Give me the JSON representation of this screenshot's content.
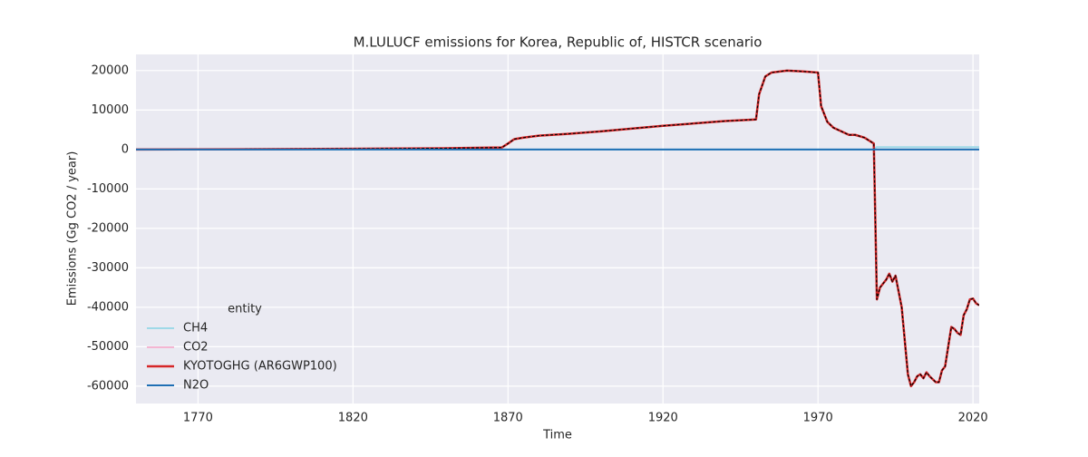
{
  "chart_data": {
    "type": "line",
    "title": "M.LULUCF emissions for Korea, Republic of, HISTCR scenario",
    "x_label": "Time",
    "y_label": "Emissions (Gg CO2 / year)",
    "x": [
      1750,
      1800,
      1850,
      1868,
      1870,
      1872,
      1875,
      1880,
      1890,
      1900,
      1920,
      1940,
      1950,
      1951,
      1953,
      1955,
      1960,
      1965,
      1970,
      1971,
      1973,
      1975,
      1980,
      1982,
      1985,
      1988,
      1989,
      1990,
      1992,
      1993,
      1994,
      1995,
      1997,
      1999,
      2000,
      2001,
      2002,
      2003,
      2004,
      2005,
      2006,
      2008,
      2009,
      2010,
      2011,
      2013,
      2014,
      2015,
      2016,
      2017,
      2018,
      2019,
      2020,
      2021,
      2022
    ],
    "series": [
      {
        "name": "CH4",
        "color": "#9fd9e8",
        "width": 2,
        "values": [
          0,
          0,
          0,
          0,
          0,
          0,
          0,
          0,
          0,
          0,
          0,
          0,
          0,
          0,
          0,
          0,
          0,
          0,
          0,
          0,
          0,
          0,
          0,
          0,
          0,
          0,
          600,
          600,
          600,
          600,
          600,
          600,
          600,
          600,
          600,
          600,
          600,
          600,
          600,
          600,
          600,
          600,
          600,
          600,
          600,
          600,
          600,
          600,
          600,
          600,
          600,
          600,
          600,
          600,
          600
        ]
      },
      {
        "name": "CO2",
        "color": "#f4b6d2",
        "width": 2,
        "values": [
          0,
          100,
          300,
          500,
          1500,
          2600,
          3000,
          3500,
          4000,
          4600,
          6000,
          7200,
          7600,
          14000,
          18500,
          19500,
          20000,
          19800,
          19500,
          11000,
          7000,
          5500,
          3700,
          3700,
          3000,
          1500,
          -38000,
          -35000,
          -33000,
          -31500,
          -33500,
          -32000,
          -40000,
          -57000,
          -60000,
          -59000,
          -57500,
          -57000,
          -58000,
          -56500,
          -57500,
          -59000,
          -59000,
          -56000,
          -55000,
          -45000,
          -45500,
          -46500,
          -47000,
          -42000,
          -40500,
          -38000,
          -37800,
          -39000,
          -39500
        ]
      },
      {
        "name": "KYOTOGHG (AR6GWP100)",
        "color": "#d62728",
        "width": 2.5,
        "dashed_overlay": true,
        "values": [
          0,
          100,
          300,
          500,
          1500,
          2600,
          3000,
          3500,
          4000,
          4600,
          6000,
          7200,
          7600,
          14000,
          18500,
          19500,
          20000,
          19800,
          19500,
          11000,
          7000,
          5500,
          3700,
          3700,
          3000,
          1500,
          -38000,
          -35000,
          -33000,
          -31500,
          -33500,
          -32000,
          -40000,
          -57000,
          -60000,
          -59000,
          -57500,
          -57000,
          -58000,
          -56500,
          -57500,
          -59000,
          -59000,
          -56000,
          -55000,
          -45000,
          -45500,
          -46500,
          -47000,
          -42000,
          -40500,
          -38000,
          -37800,
          -39000,
          -39500
        ]
      },
      {
        "name": "N2O",
        "color": "#1f6fb4",
        "width": 2,
        "values": [
          0,
          0,
          0,
          0,
          0,
          0,
          0,
          0,
          0,
          0,
          0,
          0,
          0,
          0,
          0,
          0,
          0,
          0,
          0,
          0,
          0,
          0,
          0,
          0,
          0,
          0,
          0,
          0,
          0,
          0,
          0,
          0,
          0,
          0,
          0,
          0,
          0,
          0,
          0,
          0,
          0,
          0,
          0,
          0,
          0,
          0,
          0,
          0,
          0,
          0,
          0,
          0,
          0,
          0,
          0
        ]
      }
    ],
    "legend_title": "entity",
    "legend": "lower left",
    "xlim": [
      1750,
      2022
    ],
    "xticks": [
      1770,
      1820,
      1870,
      1920,
      1970,
      2020
    ],
    "ylim": [
      -64400,
      24100
    ],
    "yticks": [
      20000,
      10000,
      0,
      -10000,
      -20000,
      -30000,
      -40000,
      -50000,
      -60000
    ],
    "grid": true
  }
}
